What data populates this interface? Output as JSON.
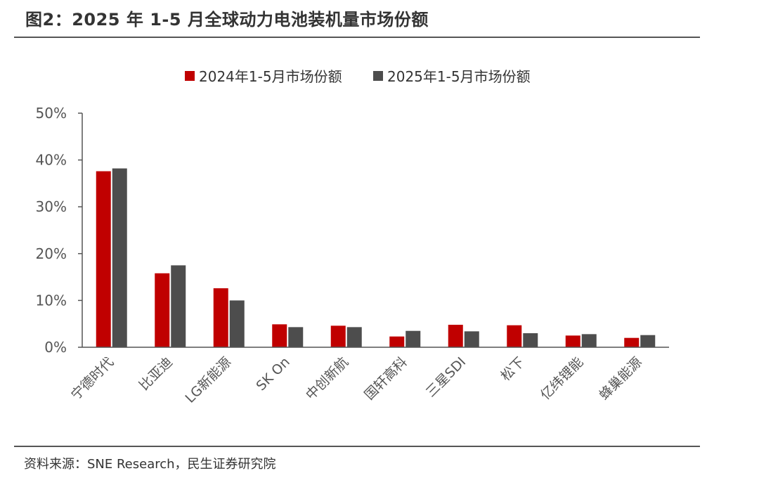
{
  "figure": {
    "title": "图2：2025 年 1-5 月全球动力电池装机量市场份额",
    "source": "资料来源：SNE Research，民生证券研究院"
  },
  "colors": {
    "series_2024": "#c00000",
    "series_2025": "#4d4d4d",
    "axis": "#555555"
  },
  "chart_data": {
    "type": "bar",
    "title": "",
    "xlabel": "",
    "ylabel": "",
    "categories": [
      "宁德时代",
      "比亚迪",
      "LG新能源",
      "SK On",
      "中创新航",
      "国轩高科",
      "三星SDI",
      "松下",
      "亿纬锂能",
      "蜂巢能源"
    ],
    "series": [
      {
        "name": "2024年1-5月市场份额",
        "values": [
          37.6,
          15.8,
          12.6,
          4.9,
          4.6,
          2.3,
          4.8,
          4.7,
          2.5,
          2.0
        ]
      },
      {
        "name": "2025年1-5月市场份额",
        "values": [
          38.2,
          17.5,
          10.0,
          4.3,
          4.3,
          3.5,
          3.4,
          3.0,
          2.8,
          2.6
        ]
      }
    ],
    "ylim": [
      0,
      50
    ],
    "yticks": [
      "0%",
      "10%",
      "20%",
      "30%",
      "40%",
      "50%"
    ],
    "legend_position": "top-center",
    "grid": false
  }
}
